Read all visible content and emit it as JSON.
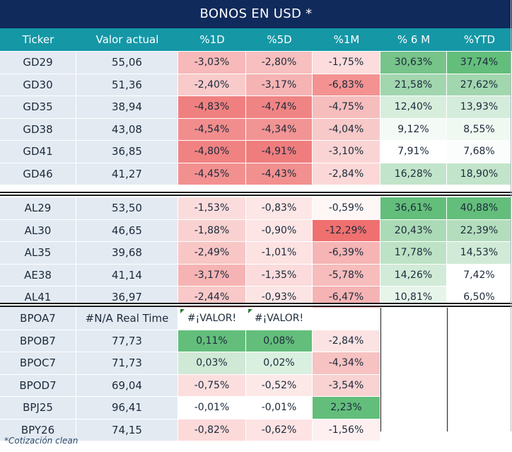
{
  "title": "BONOS EN USD *",
  "headers": [
    "Ticker",
    "Valor actual",
    "%1D",
    "%5D",
    "%1M",
    "% 6 M",
    "%YTD"
  ],
  "groups": [
    {
      "rows": [
        {
          "ticker": "GD29",
          "valor": "55,06",
          "cells": [
            {
              "text": "-3,03%",
              "color": "#f7b9b9"
            },
            {
              "text": "-2,80%",
              "color": "#f7bfbf"
            },
            {
              "text": "-1,75%",
              "color": "#fcdcdc"
            },
            {
              "text": "30,63%",
              "color": "#76c489"
            },
            {
              "text": "37,74%",
              "color": "#63be7b"
            }
          ]
        },
        {
          "ticker": "GD30",
          "valor": "51,36",
          "cells": [
            {
              "text": "-2,40%",
              "color": "#f8caca"
            },
            {
              "text": "-3,17%",
              "color": "#f5b3b3"
            },
            {
              "text": "-6,83%",
              "color": "#f49292"
            },
            {
              "text": "21,58%",
              "color": "#a2d6ae"
            },
            {
              "text": "27,62%",
              "color": "#a2d6ae"
            }
          ]
        },
        {
          "ticker": "GD35",
          "valor": "38,94",
          "cells": [
            {
              "text": "-4,83%",
              "color": "#f08080"
            },
            {
              "text": "-4,74%",
              "color": "#f08484"
            },
            {
              "text": "-4,75%",
              "color": "#f6bdbd"
            },
            {
              "text": "12,40%",
              "color": "#d8eedd"
            },
            {
              "text": "13,93%",
              "color": "#d4ecdb"
            }
          ]
        },
        {
          "ticker": "GD38",
          "valor": "43,08",
          "cells": [
            {
              "text": "-4,54%",
              "color": "#f28d8d"
            },
            {
              "text": "-4,34%",
              "color": "#f29494"
            },
            {
              "text": "-4,04%",
              "color": "#f8c9c9"
            },
            {
              "text": "9,12%",
              "color": "#f4faf6"
            },
            {
              "text": "8,55%",
              "color": "#f0f8f2"
            }
          ]
        },
        {
          "ticker": "GD41",
          "valor": "36,85",
          "cells": [
            {
              "text": "-4,80%",
              "color": "#f08282"
            },
            {
              "text": "-4,91%",
              "color": "#ef7d7d"
            },
            {
              "text": "-3,10%",
              "color": "#fad4d4"
            },
            {
              "text": "7,91%",
              "color": "#ffffff"
            },
            {
              "text": "7,68%",
              "color": "#fbfdfc"
            }
          ]
        },
        {
          "ticker": "GD46",
          "valor": "41,27",
          "cells": [
            {
              "text": "-4,45%",
              "color": "#f29090"
            },
            {
              "text": "-4,43%",
              "color": "#f29090"
            },
            {
              "text": "-2,84%",
              "color": "#fbd7d7"
            },
            {
              "text": "16,28%",
              "color": "#c2e4ca"
            },
            {
              "text": "18,90%",
              "color": "#c2e4ca"
            }
          ]
        }
      ]
    },
    {
      "rows": [
        {
          "ticker": "AL29",
          "valor": "53,50",
          "cells": [
            {
              "text": "-1,53%",
              "color": "#fbdcdc"
            },
            {
              "text": "-0,83%",
              "color": "#fde6e6"
            },
            {
              "text": "-0,59%",
              "color": "#fff6f6"
            },
            {
              "text": "36,61%",
              "color": "#63be7b"
            },
            {
              "text": "40,88%",
              "color": "#63be7b"
            }
          ]
        },
        {
          "ticker": "AL30",
          "valor": "46,65",
          "cells": [
            {
              "text": "-1,88%",
              "color": "#fad1d1"
            },
            {
              "text": "-0,90%",
              "color": "#fde5e5"
            },
            {
              "text": "-12,29%",
              "color": "#f07070"
            },
            {
              "text": "20,43%",
              "color": "#abdab6"
            },
            {
              "text": "22,39%",
              "color": "#b3ddbd"
            }
          ]
        },
        {
          "ticker": "AL35",
          "valor": "39,68",
          "cells": [
            {
              "text": "-2,49%",
              "color": "#f9c6c6"
            },
            {
              "text": "-1,01%",
              "color": "#fde2e2"
            },
            {
              "text": "-6,39%",
              "color": "#f6b4b4"
            },
            {
              "text": "17,78%",
              "color": "#bde2c5"
            },
            {
              "text": "14,53%",
              "color": "#d0ead7"
            }
          ]
        },
        {
          "ticker": "AE38",
          "valor": "41,14",
          "cells": [
            {
              "text": "-3,17%",
              "color": "#f6b3b3"
            },
            {
              "text": "-1,35%",
              "color": "#fbdbdb"
            },
            {
              "text": "-5,78%",
              "color": "#f7bcbc"
            },
            {
              "text": "14,26%",
              "color": "#d1ebd8"
            },
            {
              "text": "7,42%",
              "color": "#ffffff"
            }
          ]
        },
        {
          "ticker": "AL41",
          "valor": "36,97",
          "cells": [
            {
              "text": "-2,44%",
              "color": "#f9c8c8"
            },
            {
              "text": "-0,93%",
              "color": "#fde4e4"
            },
            {
              "text": "-6,47%",
              "color": "#f6b3b3"
            },
            {
              "text": "10,81%",
              "color": "#e6f4ea"
            },
            {
              "text": "6,50%",
              "color": "#ffffff"
            }
          ]
        }
      ]
    },
    {
      "rows": [
        {
          "ticker": "BPOA7",
          "valor": "#N/A Real Time",
          "cells": [
            {
              "text": "#¡VALOR!",
              "color": "#ffffff",
              "err": true
            },
            {
              "text": "#¡VALOR!",
              "color": "#ffffff",
              "err": true
            },
            {
              "text": "",
              "color": "#ffffff"
            },
            {
              "text": "",
              "color": "#ffffff"
            },
            {
              "text": "",
              "color": "#ffffff"
            }
          ]
        },
        {
          "ticker": "BPOB7",
          "valor": "77,73",
          "cells": [
            {
              "text": "0,11%",
              "color": "#63be7b"
            },
            {
              "text": "0,08%",
              "color": "#63be7b"
            },
            {
              "text": "-2,84%",
              "color": "#fbe3e3"
            },
            {
              "text": "",
              "color": "#ffffff"
            },
            {
              "text": "",
              "color": "#ffffff"
            }
          ]
        },
        {
          "ticker": "BPOC7",
          "valor": "71,73",
          "cells": [
            {
              "text": "0,03%",
              "color": "#cfe9d6"
            },
            {
              "text": "0,02%",
              "color": "#d9efe0"
            },
            {
              "text": "-4,34%",
              "color": "#f7c2c2"
            },
            {
              "text": "",
              "color": "#ffffff"
            },
            {
              "text": "",
              "color": "#ffffff"
            }
          ]
        },
        {
          "ticker": "BPOD7",
          "valor": "69,04",
          "cells": [
            {
              "text": "-0,75%",
              "color": "#fcdede"
            },
            {
              "text": "-0,52%",
              "color": "#fde8e8"
            },
            {
              "text": "-3,54%",
              "color": "#f9d2d2"
            },
            {
              "text": "",
              "color": "#ffffff"
            },
            {
              "text": "",
              "color": "#ffffff"
            }
          ]
        },
        {
          "ticker": "BPJ25",
          "valor": "96,41",
          "cells": [
            {
              "text": "-0,01%",
              "color": "#ffffff"
            },
            {
              "text": "-0,01%",
              "color": "#ffffff"
            },
            {
              "text": "2,23%",
              "color": "#63be7b"
            },
            {
              "text": "",
              "color": "#ffffff"
            },
            {
              "text": "",
              "color": "#ffffff"
            }
          ]
        },
        {
          "ticker": "BPY26",
          "valor": "74,15",
          "cells": [
            {
              "text": "-0,82%",
              "color": "#fcdada"
            },
            {
              "text": "-0,62%",
              "color": "#fde3e3"
            },
            {
              "text": "-1,56%",
              "color": "#fef0f0"
            },
            {
              "text": "",
              "color": "#ffffff"
            },
            {
              "text": "",
              "color": "#ffffff"
            }
          ]
        }
      ]
    }
  ],
  "footnote": "*Cotización clean",
  "colors": {
    "title_bg": "#102a5c",
    "header_bg": "#1597a6",
    "label_bg": "#e3eaf2",
    "text": "#1c2a3a",
    "error_marker": "#2e7d32"
  }
}
